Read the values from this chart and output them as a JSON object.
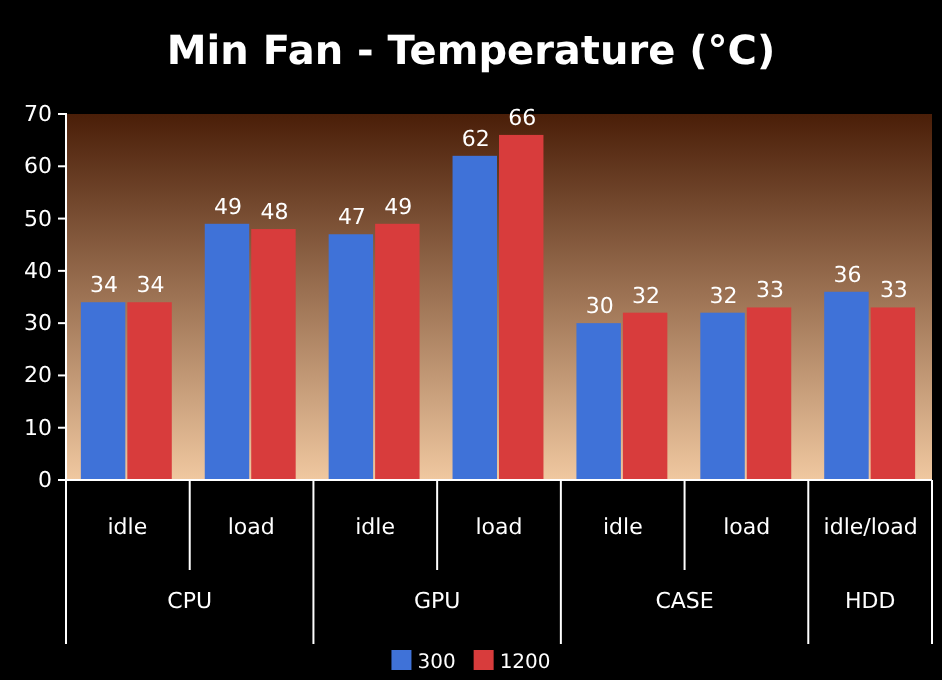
{
  "chart_data": {
    "type": "bar",
    "title": "Min Fan - Temperature (°C)",
    "categories": [
      "idle",
      "load",
      "idle",
      "load",
      "idle",
      "load",
      "idle/load"
    ],
    "series": [
      {
        "name": "300",
        "color": "#3f72d8",
        "values": [
          34,
          49,
          47,
          62,
          30,
          32,
          36
        ]
      },
      {
        "name": "1200",
        "color": "#d83c3c",
        "values": [
          34,
          48,
          49,
          66,
          32,
          33,
          33
        ]
      }
    ],
    "annotations": [
      "CPU",
      "GPU",
      "CASE",
      "HDD"
    ],
    "ylim": [
      0,
      70
    ],
    "yticks": [
      0,
      10,
      20,
      30,
      40,
      50,
      60,
      70
    ],
    "data_labels": true,
    "legend": "bottom"
  }
}
